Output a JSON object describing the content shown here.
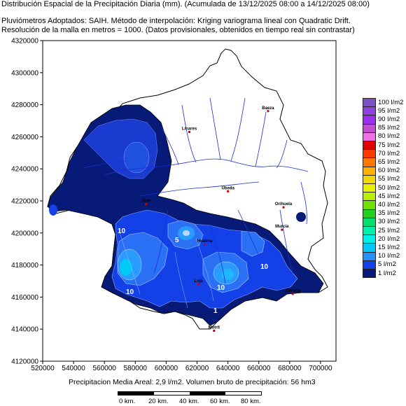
{
  "header": {
    "line1": "Distribución Espacial de la Precipitación Diaria (mm). (Acumulada de 13/12/2025 08:00 a 14/12/2025 08:00)",
    "line2": "Pluviómetros Adoptados: SAIH.  Método de interpolación: Kriging variograma lineal con Quadratic Drift.",
    "line3": "Resolución de la malla en metros = 1000. (Datos provisionales, obtenidos en tiempo real sin contrastar)"
  },
  "axes": {
    "y_ticks": [
      "4320000",
      "4300000",
      "4280000",
      "4260000",
      "4240000",
      "4220000",
      "4200000",
      "4180000",
      "4160000",
      "4140000",
      "4120000"
    ],
    "x_ticks": [
      "520000",
      "540000",
      "560000",
      "580000",
      "600000",
      "620000",
      "640000",
      "660000",
      "680000",
      "700000"
    ]
  },
  "legend": {
    "items": [
      {
        "label": "100 l/m2",
        "color": "#7b4fc8"
      },
      {
        "label": "95 l/m2",
        "color": "#8f42e0"
      },
      {
        "label": "90 l/m2",
        "color": "#9b2ff0"
      },
      {
        "label": "85 l/m2",
        "color": "#c04fd0"
      },
      {
        "label": "80 l/m2",
        "color": "#f070e8"
      },
      {
        "label": "75 l/m2",
        "color": "#e00000"
      },
      {
        "label": "70 l/m2",
        "color": "#ff3a00"
      },
      {
        "label": "65 l/m2",
        "color": "#ff7800"
      },
      {
        "label": "60 l/m2",
        "color": "#ffb000"
      },
      {
        "label": "55 l/m2",
        "color": "#f0d800"
      },
      {
        "label": "50 l/m2",
        "color": "#e8f000"
      },
      {
        "label": "45 l/m2",
        "color": "#b8ee00"
      },
      {
        "label": "40 l/m2",
        "color": "#70e000"
      },
      {
        "label": "35 l/m2",
        "color": "#20d020"
      },
      {
        "label": "30 l/m2",
        "color": "#00e070"
      },
      {
        "label": "25 l/m2",
        "color": "#00f0b0"
      },
      {
        "label": "20 l/m2",
        "color": "#00f0e8"
      },
      {
        "label": "15 l/m2",
        "color": "#00c8f8"
      },
      {
        "label": "10 l/m2",
        "color": "#2a90ff"
      },
      {
        "label": "5 l/m2",
        "color": "#1440e8"
      },
      {
        "label": "1 l/m2",
        "color": "#071a78"
      }
    ]
  },
  "cities": [
    {
      "name": "Jaén",
      "x": 587000,
      "y": 4218000
    },
    {
      "name": "Huelma",
      "x": 625000,
      "y": 4193000
    },
    {
      "name": "Baeza",
      "x": 666000,
      "y": 4276000
    },
    {
      "name": "Úbeda",
      "x": 640000,
      "y": 4226000
    },
    {
      "name": "Linares",
      "x": 615000,
      "y": 4263000
    },
    {
      "name": "Orihuela",
      "x": 676000,
      "y": 4216000
    },
    {
      "name": "Murcia",
      "x": 675000,
      "y": 4202000
    },
    {
      "name": "Loja",
      "x": 621000,
      "y": 4168000
    },
    {
      "name": "Almería",
      "x": 682000,
      "y": 4162000
    },
    {
      "name": "Motril",
      "x": 631000,
      "y": 4139000
    }
  ],
  "isolines": [
    "10",
    "5",
    "10",
    "10",
    "1",
    "10"
  ],
  "footer": {
    "summary": "Precipitacion Media Areal: 2,9 l/m2. Volumen bruto de precipitación: 56 hm3"
  },
  "scale": {
    "labels": [
      "0 km.",
      "20 km.",
      "40 km.",
      "60 km.",
      "80 km."
    ]
  }
}
